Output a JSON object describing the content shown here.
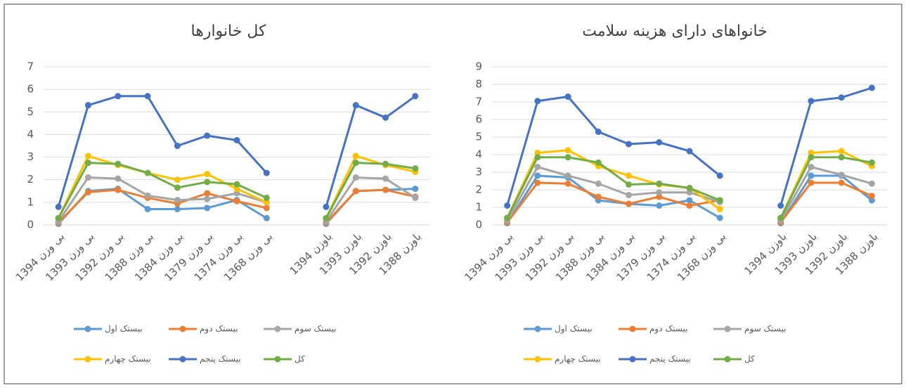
{
  "chart_data": [
    {
      "type": "line",
      "title": "کل خانوارها",
      "categories": [
        "بی وزن 1394",
        "بی وزن 1393",
        "بی وزن 1392",
        "بی وزن 1388",
        "بی وزن 1384",
        "بی وزن 1379",
        "بی وزن 1374",
        "بی وزن 1368",
        null,
        "باوزن 1394",
        "باوزن 1393",
        "باوزن 1392",
        "باوزن 1388"
      ],
      "series": [
        {
          "name": "بیستک اول",
          "color": "#5b9bd5",
          "values": [
            0.05,
            1.5,
            1.6,
            0.7,
            0.7,
            0.75,
            1.1,
            0.3,
            null,
            0.05,
            1.5,
            1.55,
            1.6
          ]
        },
        {
          "name": "بیستک دوم",
          "color": "#ed7d31",
          "values": [
            0.1,
            1.45,
            1.55,
            1.2,
            0.95,
            1.4,
            1.05,
            0.75,
            null,
            0.1,
            1.5,
            1.55,
            1.25
          ]
        },
        {
          "name": "بیستک سوم",
          "color": "#a5a5a5",
          "values": [
            0.15,
            2.1,
            2.05,
            1.3,
            1.1,
            1.15,
            1.4,
            1.0,
            null,
            0.15,
            2.1,
            2.05,
            1.2
          ]
        },
        {
          "name": "بیستک چهارم",
          "color": "#ffc000",
          "values": [
            0.3,
            3.05,
            2.65,
            2.3,
            2.0,
            2.25,
            1.6,
            1.0,
            null,
            0.3,
            3.05,
            2.65,
            2.35
          ]
        },
        {
          "name": "بیستک پنجم",
          "color": "#4472c4",
          "values": [
            0.8,
            5.3,
            5.7,
            5.7,
            3.5,
            3.95,
            3.75,
            2.3,
            null,
            0.8,
            5.3,
            4.75,
            5.7
          ]
        },
        {
          "name": "کل",
          "color": "#70ad47",
          "values": [
            0.3,
            2.75,
            2.7,
            2.3,
            1.65,
            1.9,
            1.8,
            1.2,
            null,
            0.3,
            2.75,
            2.7,
            2.5
          ]
        }
      ],
      "ylim": [
        0,
        7
      ],
      "yticks": [
        0,
        1,
        2,
        3,
        4,
        5,
        6,
        7
      ],
      "grid": true
    },
    {
      "type": "line",
      "title": "خانواهای دارای هزینه سلامت",
      "categories": [
        "بی وزن 1394",
        "بی وزن 1393",
        "بی وزن 1392",
        "بی وزن 1388",
        "بی وزن 1384",
        "بی وزن 1379",
        "بی وزن 1374",
        "بی وزن 1368",
        null,
        "باوزن 1394",
        "باوزن 1393",
        "باوزن 1392",
        "باوزن 1388"
      ],
      "series": [
        {
          "name": "بیستک اول",
          "color": "#5b9bd5",
          "values": [
            0.1,
            2.8,
            2.7,
            1.4,
            1.2,
            1.1,
            1.4,
            0.4,
            null,
            0.1,
            2.8,
            2.8,
            1.4
          ]
        },
        {
          "name": "بیستک دوم",
          "color": "#ed7d31",
          "values": [
            0.15,
            2.4,
            2.35,
            1.6,
            1.2,
            1.6,
            1.1,
            1.4,
            null,
            0.15,
            2.4,
            2.4,
            1.65
          ]
        },
        {
          "name": "بیستک سوم",
          "color": "#a5a5a5",
          "values": [
            0.25,
            3.3,
            2.8,
            2.35,
            1.7,
            1.85,
            1.85,
            1.3,
            null,
            0.25,
            3.3,
            2.85,
            2.35
          ]
        },
        {
          "name": "بیستک چهارم",
          "color": "#ffc000",
          "values": [
            0.4,
            4.1,
            4.25,
            3.35,
            2.8,
            2.3,
            2.1,
            0.9,
            null,
            0.4,
            4.1,
            4.2,
            3.35
          ]
        },
        {
          "name": "بیستک پنجم",
          "color": "#4472c4",
          "values": [
            1.1,
            7.05,
            7.3,
            5.3,
            4.6,
            4.7,
            4.2,
            2.8,
            null,
            1.1,
            7.05,
            7.25,
            7.8
          ]
        },
        {
          "name": "کل",
          "color": "#70ad47",
          "values": [
            0.4,
            3.85,
            3.85,
            3.55,
            2.3,
            2.35,
            2.1,
            1.4,
            null,
            0.4,
            3.85,
            3.85,
            3.55
          ]
        }
      ],
      "ylim": [
        0,
        9
      ],
      "yticks": [
        0,
        1,
        2,
        3,
        4,
        5,
        6,
        7,
        8,
        9
      ],
      "grid": true
    }
  ]
}
